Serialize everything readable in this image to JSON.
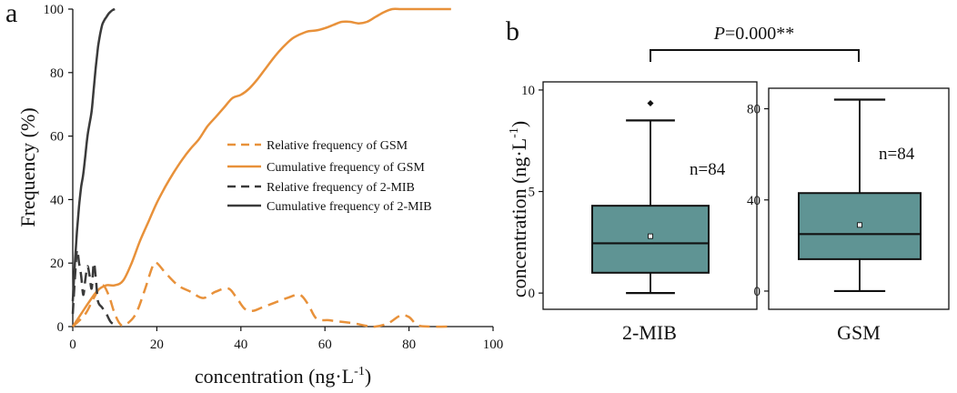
{
  "panel_labels": {
    "a": "a",
    "b": "b"
  },
  "chart_data": [
    {
      "id": "a",
      "type": "line",
      "xlabel": "concentration (ng·L",
      "xlabel_sup": "-1",
      "xlabel_close": ")",
      "ylabel": "Frequency (%)",
      "xlim": [
        0,
        100
      ],
      "ylim": [
        0,
        100
      ],
      "xticks": [
        0,
        20,
        40,
        60,
        80,
        100
      ],
      "yticks": [
        0,
        20,
        40,
        60,
        80,
        100
      ],
      "legend_position": "center-right",
      "series": [
        {
          "name": "Relative frequency of GSM",
          "color": "#E8913A",
          "dash": "dashed",
          "x": [
            0,
            3,
            5,
            7,
            8.5,
            10,
            11.5,
            13,
            15,
            17,
            19,
            20,
            22,
            25,
            28,
            31,
            34,
            37,
            39,
            41,
            43,
            45,
            48,
            51,
            54,
            56,
            58,
            61,
            64,
            67,
            70,
            72,
            75,
            78,
            80,
            82,
            85,
            90
          ],
          "y": [
            0,
            4,
            9,
            13,
            10,
            4,
            0.5,
            1,
            4,
            11,
            19,
            20,
            17,
            13,
            11,
            9,
            11,
            12,
            9,
            5.5,
            5,
            6,
            7.5,
            9,
            10,
            7,
            2.5,
            2,
            1.5,
            1,
            0.2,
            0,
            1,
            3.5,
            3,
            0.5,
            0,
            0
          ]
        },
        {
          "name": "Cumulative frequency of GSM",
          "color": "#E8913A",
          "dash": "solid",
          "x": [
            0,
            2,
            4,
            6,
            8,
            10,
            12,
            14,
            16,
            18,
            20,
            22,
            24,
            26,
            28,
            30,
            32,
            34,
            36,
            38,
            40,
            42,
            44,
            46,
            48,
            50,
            52,
            54,
            56,
            58,
            60,
            62,
            64,
            66,
            68,
            70,
            72,
            74,
            76,
            78,
            80,
            82,
            85,
            88,
            90
          ],
          "y": [
            0,
            4,
            8,
            11.5,
            13,
            13,
            14.5,
            20,
            27,
            33,
            39,
            44,
            48.5,
            52.5,
            56,
            59,
            63,
            66,
            69,
            72,
            73,
            75,
            78,
            81.5,
            85,
            88,
            90.5,
            92,
            93,
            93.3,
            94,
            95,
            96,
            96,
            95.5,
            96,
            97.5,
            99,
            100,
            100,
            100,
            100,
            100,
            100,
            100
          ]
        },
        {
          "name": "Relative frequency of 2-MIB",
          "color": "#3a3a3a",
          "dash": "dashed",
          "x": [
            0,
            0.5,
            1,
            1.5,
            2,
            2.5,
            3,
            3.5,
            4,
            4.5,
            5,
            5.5,
            6,
            7,
            8,
            9,
            10
          ],
          "y": [
            4,
            15,
            24,
            20,
            16,
            10,
            15,
            19,
            16,
            12,
            20,
            15,
            8,
            6,
            4,
            1.5,
            0.5
          ]
        },
        {
          "name": "Cumulative frequency of 2-MIB",
          "color": "#3a3a3a",
          "dash": "solid",
          "x": [
            0,
            0.5,
            1,
            1.5,
            2,
            2.5,
            3,
            3.5,
            4,
            4.5,
            5,
            5.5,
            6,
            6.5,
            7,
            7.5,
            8,
            8.5,
            9,
            9.5,
            10
          ],
          "y": [
            8,
            20,
            30,
            38,
            44,
            48,
            54,
            60,
            64,
            68,
            75,
            82,
            88,
            92,
            95,
            96.5,
            97.5,
            98.5,
            99.2,
            99.7,
            100
          ]
        }
      ]
    },
    {
      "id": "b1",
      "type": "box",
      "category": "2-MIB",
      "ylabel": "concentration (ng·L",
      "ylabel_sup": "-1",
      "ylabel_close": ")",
      "ylim": [
        -0.8,
        10.4
      ],
      "yticks": [
        0,
        5,
        10
      ],
      "box": {
        "min": 0,
        "q1": 1.0,
        "median": 2.45,
        "mean": 2.8,
        "q3": 4.3,
        "max": 8.5,
        "outliers": [
          9.35
        ]
      },
      "fill": "#5F9494",
      "annotation": "n=84"
    },
    {
      "id": "b2",
      "type": "box",
      "category": "GSM",
      "ylim": [
        -8,
        89
      ],
      "yticks": [
        0,
        40,
        80
      ],
      "box": {
        "min": 0,
        "q1": 14,
        "median": 25,
        "mean": 29,
        "q3": 43,
        "max": 84,
        "outliers": []
      },
      "fill": "#5F9494",
      "annotation": "n=84"
    }
  ],
  "significance": {
    "p_italic": "P",
    "p_rest": "=0.000**"
  }
}
